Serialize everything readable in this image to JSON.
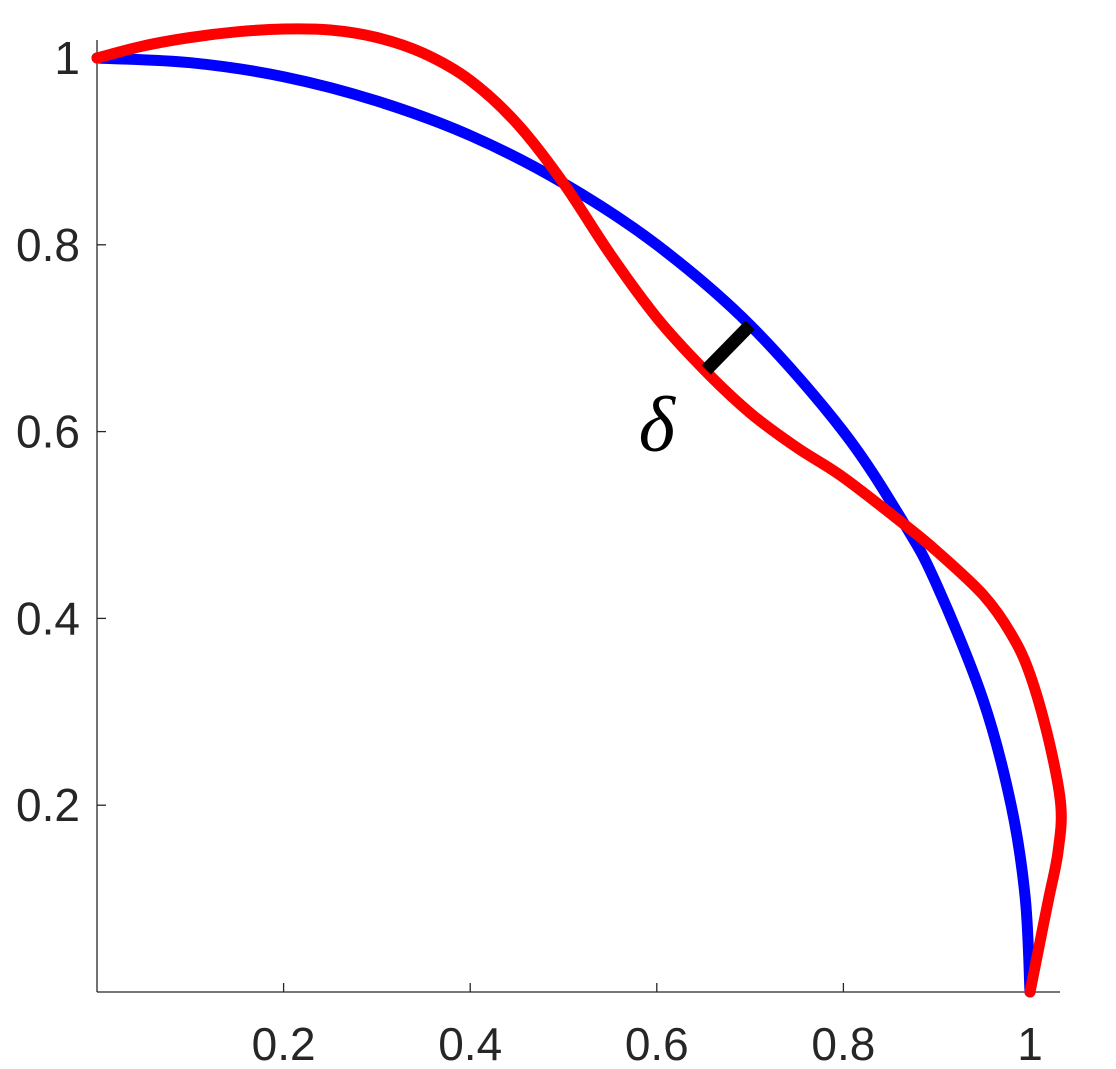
{
  "chart_data": {
    "type": "line",
    "title": "",
    "xlabel": "",
    "ylabel": "",
    "xlim": [
      0,
      1.03
    ],
    "ylim": [
      0,
      1.03
    ],
    "grid": false,
    "x_ticks": [
      {
        "value": 0.2,
        "label": "0.2"
      },
      {
        "value": 0.4,
        "label": "0.4"
      },
      {
        "value": 0.6,
        "label": "0.6"
      },
      {
        "value": 0.8,
        "label": "0.8"
      },
      {
        "value": 1,
        "label": "1"
      }
    ],
    "y_ticks": [
      {
        "value": 0.2,
        "label": "0.2"
      },
      {
        "value": 0.4,
        "label": "0.4"
      },
      {
        "value": 0.6,
        "label": "0.6"
      },
      {
        "value": 0.8,
        "label": "0.8"
      },
      {
        "value": 1,
        "label": "1"
      }
    ],
    "series": [
      {
        "color": "#0000ff",
        "points": [
          [
            0.0,
            1.0
          ],
          [
            0.1,
            0.995
          ],
          [
            0.2,
            0.98
          ],
          [
            0.3,
            0.954
          ],
          [
            0.4,
            0.917
          ],
          [
            0.5,
            0.866
          ],
          [
            0.6,
            0.8
          ],
          [
            0.7,
            0.714
          ],
          [
            0.8,
            0.6
          ],
          [
            0.866,
            0.5
          ],
          [
            0.9,
            0.436
          ],
          [
            0.95,
            0.312
          ],
          [
            0.98,
            0.199
          ],
          [
            0.995,
            0.1
          ],
          [
            1.0,
            0.0
          ]
        ]
      },
      {
        "color": "#ff0000",
        "points": [
          [
            0.0,
            1.0
          ],
          [
            0.05,
            1.013
          ],
          [
            0.1,
            1.022
          ],
          [
            0.15,
            1.028
          ],
          [
            0.2,
            1.031
          ],
          [
            0.25,
            1.03
          ],
          [
            0.3,
            1.022
          ],
          [
            0.35,
            1.005
          ],
          [
            0.4,
            0.976
          ],
          [
            0.45,
            0.93
          ],
          [
            0.5,
            0.866
          ],
          [
            0.55,
            0.79
          ],
          [
            0.6,
            0.722
          ],
          [
            0.65,
            0.667
          ],
          [
            0.7,
            0.62
          ],
          [
            0.75,
            0.583
          ],
          [
            0.8,
            0.551
          ],
          [
            0.866,
            0.5
          ],
          [
            0.9,
            0.472
          ],
          [
            0.95,
            0.425
          ],
          [
            0.98,
            0.383
          ],
          [
            1.0,
            0.34
          ],
          [
            1.02,
            0.27
          ],
          [
            1.033,
            0.2
          ],
          [
            1.03,
            0.15
          ],
          [
            1.02,
            0.1
          ],
          [
            1.01,
            0.05
          ],
          [
            1.0,
            0.0
          ]
        ]
      }
    ],
    "annotations": [
      {
        "text": "δ",
        "x": 0.6,
        "y": 0.58
      },
      {
        "type": "segment",
        "from": [
          0.653,
          0.666
        ],
        "to": [
          0.7,
          0.714
        ],
        "color": "#000000"
      }
    ]
  }
}
